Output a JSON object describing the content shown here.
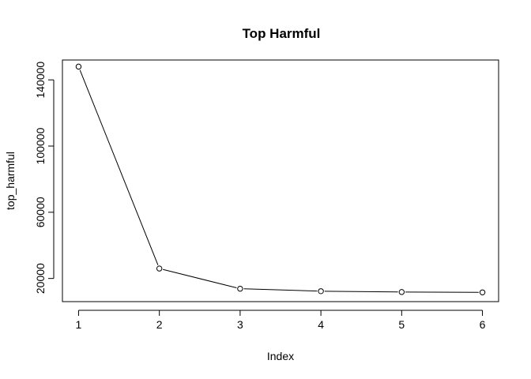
{
  "chart_data": {
    "type": "line",
    "title": "Top Harmful",
    "xlabel": "Index",
    "ylabel": "top_harmful",
    "x": [
      1,
      2,
      3,
      4,
      5,
      6
    ],
    "values": [
      148000,
      26000,
      13800,
      12300,
      11800,
      11600
    ],
    "xlim": [
      0.8,
      6.2
    ],
    "ylim": [
      6000,
      152000
    ],
    "x_ticks": [
      1,
      2,
      3,
      4,
      5,
      6
    ],
    "y_ticks": [
      20000,
      60000,
      100000,
      140000
    ],
    "x_tick_labels": [
      "1",
      "2",
      "3",
      "4",
      "5",
      "6"
    ],
    "y_tick_labels": [
      "20000",
      "60000",
      "100000",
      "140000"
    ],
    "grid": false,
    "markers": "open-circle"
  }
}
